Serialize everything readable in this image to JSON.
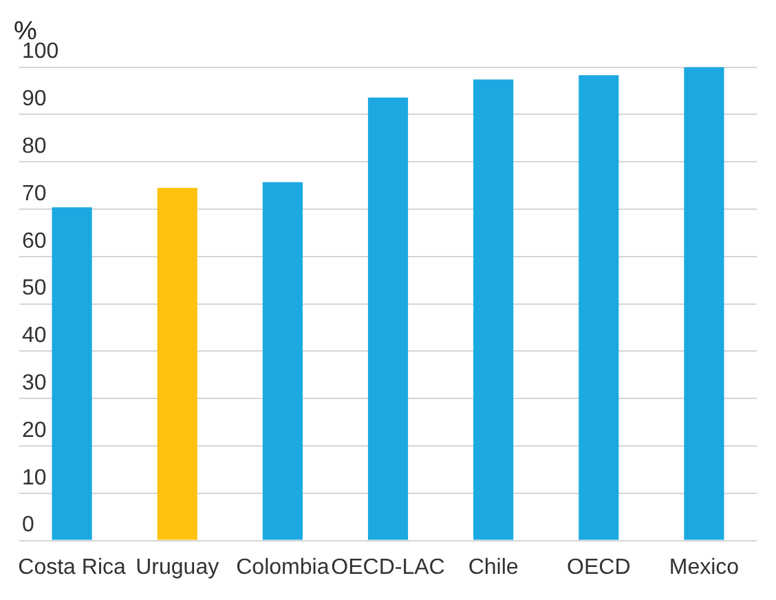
{
  "chart_data": {
    "type": "bar",
    "ylabel": "%",
    "categories": [
      "Costa Rica",
      "Uruguay",
      "Colombia",
      "OECD-LAC",
      "Chile",
      "OECD",
      "Mexico"
    ],
    "values": [
      70.4,
      74.5,
      75.7,
      93.6,
      97.4,
      98.3,
      100
    ],
    "colors": [
      "#1ca9e1",
      "#ffc20e",
      "#1ca9e1",
      "#1ca9e1",
      "#1ca9e1",
      "#1ca9e1",
      "#1ca9e1"
    ],
    "ylim": [
      0,
      100
    ],
    "yticks": [
      0,
      10,
      20,
      30,
      40,
      50,
      60,
      70,
      80,
      90,
      100
    ],
    "grid": "y",
    "legend": false
  }
}
